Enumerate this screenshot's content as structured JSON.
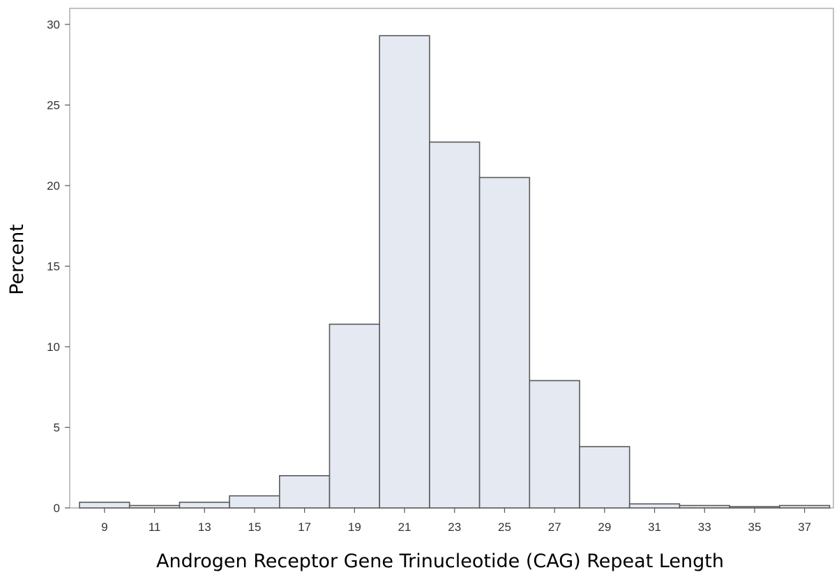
{
  "chart_data": {
    "type": "bar",
    "xlabel": "Androgen Receptor Gene Trinucleotide (CAG) Repeat Length",
    "ylabel": "Percent",
    "categories": [
      "9",
      "11",
      "13",
      "15",
      "17",
      "19",
      "21",
      "23",
      "25",
      "27",
      "29",
      "31",
      "33",
      "35",
      "37"
    ],
    "values": [
      0.35,
      0.15,
      0.35,
      0.75,
      2.0,
      11.4,
      29.3,
      22.7,
      20.5,
      7.9,
      3.8,
      0.25,
      0.15,
      0.08,
      0.15
    ],
    "ylim": [
      0,
      30
    ],
    "yticks": [
      "0",
      "5",
      "10",
      "15",
      "20",
      "25",
      "30"
    ],
    "grid": false,
    "bar_color": "#e5e9f2",
    "bar_edge_color": "#595959"
  }
}
